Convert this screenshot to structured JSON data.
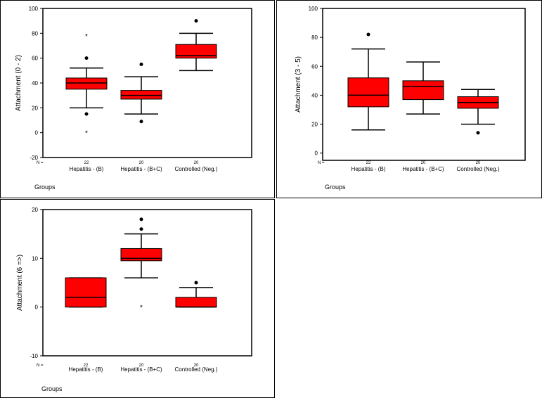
{
  "colors": {
    "box_fill": "#ff0000",
    "box_stroke": "#000000",
    "axis": "#000000",
    "background": "#ffffff"
  },
  "chart_data": [
    {
      "type": "box",
      "ylabel": "Attachment (0 - 2)",
      "xlabel": "Groups",
      "n_label": "N =",
      "ylim": [
        -20,
        100
      ],
      "yticks": [
        -20,
        0,
        20,
        40,
        60,
        80,
        100
      ],
      "categories": [
        "Hepatitis - (B)",
        "Hepatitis - (B+C)",
        "Controlled (Neg.)"
      ],
      "n": [
        "22",
        "20",
        "20"
      ],
      "boxes": [
        {
          "whisker_low": 20,
          "q1": 35,
          "median": 40,
          "q3": 44,
          "whisker_high": 52,
          "outliers": [
            60,
            15
          ],
          "extremes": [
            78,
            0
          ]
        },
        {
          "whisker_low": 15,
          "q1": 27,
          "median": 30,
          "q3": 34,
          "whisker_high": 45,
          "outliers": [
            55,
            9
          ],
          "extremes": []
        },
        {
          "whisker_low": 50,
          "q1": 60,
          "median": 62,
          "q3": 71,
          "whisker_high": 80,
          "outliers": [
            90
          ],
          "extremes": []
        }
      ]
    },
    {
      "type": "box",
      "ylabel": "Attachment (3 - 5)",
      "xlabel": "Groups",
      "n_label": "N =",
      "ylim": [
        -5,
        100
      ],
      "yticks": [
        0,
        20,
        40,
        60,
        80,
        100
      ],
      "categories": [
        "Hepatitis - (B)",
        "Hepatitis - (B+C)",
        "Controlled (Neg.)"
      ],
      "n": [
        "22",
        "20",
        "20"
      ],
      "boxes": [
        {
          "whisker_low": 16,
          "q1": 32,
          "median": 40,
          "q3": 52,
          "whisker_high": 72,
          "outliers": [
            82
          ],
          "extremes": []
        },
        {
          "whisker_low": 27,
          "q1": 37,
          "median": 46,
          "q3": 50,
          "whisker_high": 63,
          "outliers": [],
          "extremes": []
        },
        {
          "whisker_low": 20,
          "q1": 31,
          "median": 35,
          "q3": 39,
          "whisker_high": 44,
          "outliers": [
            14
          ],
          "extremes": []
        }
      ]
    },
    {
      "type": "box",
      "ylabel": "Attachment (6 =>)",
      "xlabel": "Groups",
      "n_label": "N =",
      "ylim": [
        -10,
        20
      ],
      "yticks": [
        -10,
        0,
        10,
        20
      ],
      "categories": [
        "Hepatitis - (B)",
        "Hepatitis - (B+C)",
        "Controlled (Neg.)"
      ],
      "n": [
        "22",
        "20",
        "20"
      ],
      "boxes": [
        {
          "whisker_low": 0,
          "q1": 0,
          "median": 2,
          "q3": 6,
          "whisker_high": 6,
          "outliers": [],
          "extremes": []
        },
        {
          "whisker_low": 6,
          "q1": 9.5,
          "median": 10,
          "q3": 12,
          "whisker_high": 15,
          "outliers": [
            16,
            18
          ],
          "extremes": [
            0
          ]
        },
        {
          "whisker_low": 0,
          "q1": 0,
          "median": 0,
          "q3": 2,
          "whisker_high": 4,
          "outliers": [
            5
          ],
          "extremes": []
        }
      ]
    }
  ]
}
